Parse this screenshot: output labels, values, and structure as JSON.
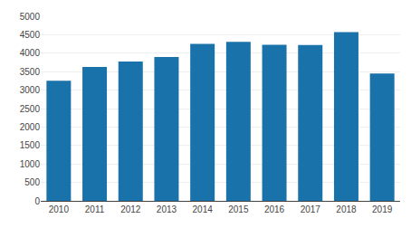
{
  "chart_data": {
    "type": "bar",
    "categories": [
      "2010",
      "2011",
      "2012",
      "2013",
      "2014",
      "2015",
      "2016",
      "2017",
      "2018",
      "2019"
    ],
    "values": [
      3255,
      3625,
      3775,
      3895,
      4255,
      4305,
      4225,
      4220,
      4570,
      3450
    ],
    "color": "#1a72aa",
    "ylim": [
      0,
      5000
    ],
    "yticks": [
      0,
      500,
      1000,
      1500,
      2000,
      2500,
      3000,
      3500,
      4000,
      4500,
      5000
    ],
    "grid": true
  }
}
